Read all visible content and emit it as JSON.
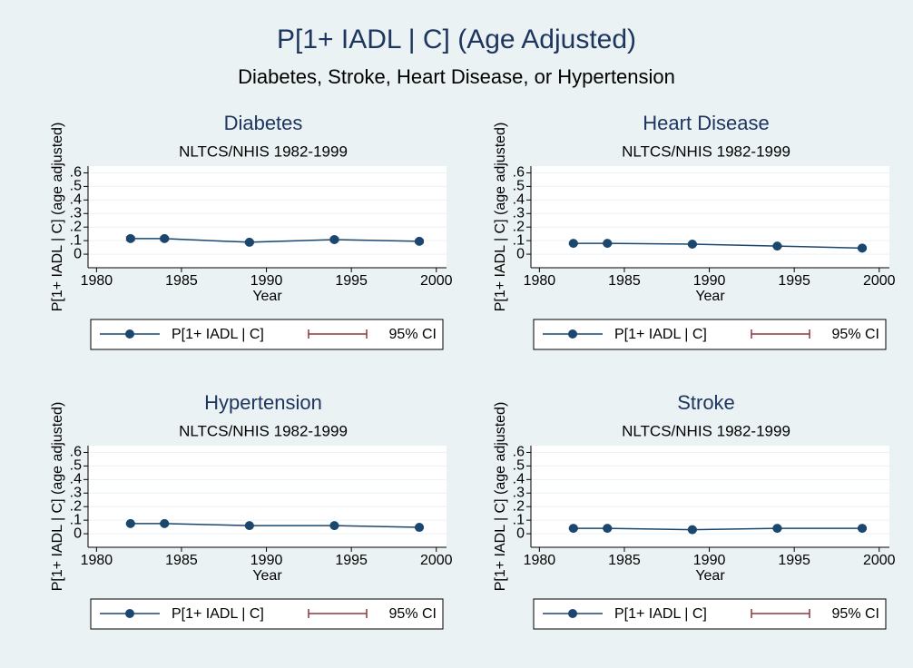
{
  "title": "P[1+ IADL | C] (Age Adjusted)",
  "subtitle": "Diabetes, Stroke, Heart Disease, or Hypertension",
  "chart_data": [
    {
      "type": "line",
      "title": "Diabetes",
      "subtitle": "NLTCS/NHIS 1982-1999",
      "x_label": "Year",
      "y_label": "P[1+ IADL | C] (age adjusted)",
      "x": [
        1982,
        1984,
        1989,
        1994,
        1999
      ],
      "series": [
        {
          "name": "P[1+ IADL | C]",
          "color": "#1a476f",
          "values": [
            0.115,
            0.115,
            0.088,
            0.108,
            0.095
          ]
        },
        {
          "name": "95% CI",
          "color": "#90353b",
          "lower": [
            0.103,
            0.104,
            0.079,
            0.097,
            0.085
          ],
          "upper": [
            0.127,
            0.126,
            0.097,
            0.119,
            0.105
          ]
        }
      ],
      "xlim": [
        1979.5,
        2000.6
      ],
      "xticks": [
        1980,
        1985,
        1990,
        1995,
        2000
      ],
      "ylim": [
        -0.1,
        0.65
      ],
      "yticks": [
        0,
        {
          "value": 0.1,
          "label": ".1"
        },
        {
          "value": 0.2,
          "label": ".2"
        },
        {
          "value": 0.3,
          "label": ".3"
        },
        {
          "value": 0.4,
          "label": ".4"
        },
        {
          "value": 0.5,
          "label": ".5"
        },
        {
          "value": 0.6,
          "label": ".6"
        }
      ],
      "grid": true
    },
    {
      "type": "line",
      "title": "Heart Disease",
      "subtitle": "NLTCS/NHIS 1982-1999",
      "x_label": "Year",
      "y_label": "P[1+ IADL | C] (age adjusted)",
      "x": [
        1982,
        1984,
        1989,
        1994,
        1999
      ],
      "series": [
        {
          "name": "P[1+ IADL | C]",
          "color": "#1a476f",
          "values": [
            0.08,
            0.08,
            0.074,
            0.06,
            0.045
          ]
        },
        {
          "name": "95% CI",
          "color": "#90353b",
          "lower": [
            0.073,
            0.073,
            0.067,
            0.053,
            0.038
          ],
          "upper": [
            0.087,
            0.087,
            0.081,
            0.067,
            0.052
          ]
        }
      ],
      "xlim": [
        1979.5,
        2000.6
      ],
      "xticks": [
        1980,
        1985,
        1990,
        1995,
        2000
      ],
      "ylim": [
        -0.1,
        0.65
      ],
      "yticks": [
        0,
        {
          "value": 0.1,
          "label": ".1"
        },
        {
          "value": 0.2,
          "label": ".2"
        },
        {
          "value": 0.3,
          "label": ".3"
        },
        {
          "value": 0.4,
          "label": ".4"
        },
        {
          "value": 0.5,
          "label": ".5"
        },
        {
          "value": 0.6,
          "label": ".6"
        }
      ],
      "grid": true
    },
    {
      "type": "line",
      "title": "Hypertension",
      "subtitle": "NLTCS/NHIS 1982-1999",
      "x_label": "Year",
      "y_label": "P[1+ IADL | C] (age adjusted)",
      "x": [
        1982,
        1984,
        1989,
        1994,
        1999
      ],
      "series": [
        {
          "name": "P[1+ IADL | C]",
          "color": "#1a476f",
          "values": [
            0.075,
            0.075,
            0.06,
            0.06,
            0.047
          ]
        },
        {
          "name": "95% CI",
          "color": "#90353b",
          "lower": [
            0.07,
            0.07,
            0.055,
            0.055,
            0.042
          ],
          "upper": [
            0.08,
            0.08,
            0.065,
            0.065,
            0.052
          ]
        }
      ],
      "xlim": [
        1979.5,
        2000.6
      ],
      "xticks": [
        1980,
        1985,
        1990,
        1995,
        2000
      ],
      "ylim": [
        -0.1,
        0.65
      ],
      "yticks": [
        0,
        {
          "value": 0.1,
          "label": ".1"
        },
        {
          "value": 0.2,
          "label": ".2"
        },
        {
          "value": 0.3,
          "label": ".3"
        },
        {
          "value": 0.4,
          "label": ".4"
        },
        {
          "value": 0.5,
          "label": ".5"
        },
        {
          "value": 0.6,
          "label": ".6"
        }
      ],
      "grid": true
    },
    {
      "type": "line",
      "title": "Stroke",
      "subtitle": "NLTCS/NHIS 1982-1999",
      "x_label": "Year",
      "y_label": "P[1+ IADL | C] (age adjusted)",
      "x": [
        1982,
        1984,
        1989,
        1994,
        1999
      ],
      "series": [
        {
          "name": "P[1+ IADL | C]",
          "color": "#1a476f",
          "values": [
            0.04,
            0.04,
            0.03,
            0.04,
            0.04
          ]
        },
        {
          "name": "95% CI",
          "color": "#90353b",
          "lower": [
            0.034,
            0.034,
            0.024,
            0.033,
            0.033
          ],
          "upper": [
            0.046,
            0.046,
            0.036,
            0.047,
            0.047
          ]
        }
      ],
      "xlim": [
        1979.5,
        2000.6
      ],
      "xticks": [
        1980,
        1985,
        1990,
        1995,
        2000
      ],
      "ylim": [
        -0.1,
        0.65
      ],
      "yticks": [
        0,
        {
          "value": 0.1,
          "label": ".1"
        },
        {
          "value": 0.2,
          "label": ".2"
        },
        {
          "value": 0.3,
          "label": ".3"
        },
        {
          "value": 0.4,
          "label": ".4"
        },
        {
          "value": 0.5,
          "label": ".5"
        },
        {
          "value": 0.6,
          "label": ".6"
        }
      ],
      "grid": true
    }
  ]
}
